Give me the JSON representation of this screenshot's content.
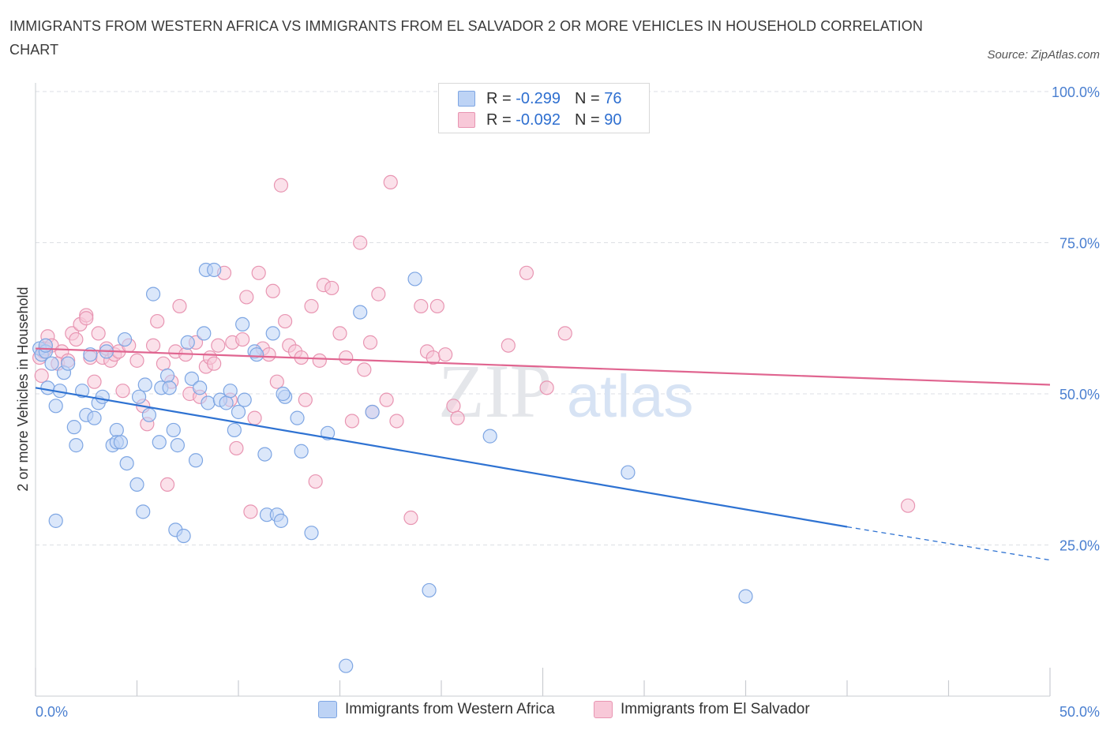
{
  "title": "IMMIGRANTS FROM WESTERN AFRICA VS IMMIGRANTS FROM EL SALVADOR 2 OR MORE VEHICLES IN HOUSEHOLD CORRELATION CHART",
  "source": "Source: ZipAtlas.com",
  "watermark": {
    "zip": "ZIP",
    "atlas": "atlas"
  },
  "colors": {
    "blue_fill": "#bdd3f5",
    "blue_stroke": "#7ea6e3",
    "blue_line": "#2e72d2",
    "pink_fill": "#f8c8d8",
    "pink_stroke": "#e895b2",
    "pink_line": "#e06590",
    "tick_text": "#4a7fd0"
  },
  "legend": {
    "rows": [
      {
        "r_label": "R = ",
        "r_value": "-0.299",
        "n_label": "N = ",
        "n_value": "76",
        "color": "blue"
      },
      {
        "r_label": "R = ",
        "r_value": "-0.092",
        "n_label": "N = ",
        "n_value": "90",
        "color": "pink"
      }
    ]
  },
  "bottom_legend": [
    "Immigrants from Western Africa",
    "Immigrants from El Salvador"
  ],
  "chart_data": {
    "type": "scatter",
    "xlabel": "",
    "ylabel": "2 or more Vehicles in Household",
    "xlim": [
      0,
      50
    ],
    "ylim": [
      0,
      100
    ],
    "x_tick_labels": [
      "0.0%",
      "50.0%"
    ],
    "y_tick_labels": [
      "25.0%",
      "50.0%",
      "75.0%",
      "100.0%"
    ],
    "y_ticks": [
      25,
      50,
      75,
      100
    ],
    "grid": true,
    "series": [
      {
        "name": "Immigrants from Western Africa",
        "color": "blue",
        "points": [
          [
            0.2,
            57.5
          ],
          [
            0.3,
            56.5
          ],
          [
            0.5,
            57.0
          ],
          [
            0.6,
            51.0
          ],
          [
            0.8,
            55.0
          ],
          [
            1.0,
            48.0
          ],
          [
            1.0,
            29.0
          ],
          [
            1.2,
            50.5
          ],
          [
            1.4,
            53.5
          ],
          [
            1.6,
            55.0
          ],
          [
            1.9,
            44.5
          ],
          [
            2.0,
            41.5
          ],
          [
            2.3,
            50.5
          ],
          [
            2.5,
            46.5
          ],
          [
            2.7,
            56.5
          ],
          [
            2.9,
            46.0
          ],
          [
            3.1,
            48.5
          ],
          [
            3.3,
            49.5
          ],
          [
            3.5,
            57.0
          ],
          [
            3.8,
            41.5
          ],
          [
            4.0,
            44.0
          ],
          [
            4.0,
            42.0
          ],
          [
            4.2,
            42.0
          ],
          [
            4.4,
            59.0
          ],
          [
            4.5,
            38.5
          ],
          [
            5.0,
            35.0
          ],
          [
            5.1,
            49.5
          ],
          [
            5.3,
            30.5
          ],
          [
            5.4,
            51.5
          ],
          [
            5.6,
            46.5
          ],
          [
            5.8,
            66.5
          ],
          [
            6.1,
            42.0
          ],
          [
            6.2,
            51.0
          ],
          [
            6.5,
            53.0
          ],
          [
            6.6,
            51.0
          ],
          [
            6.8,
            44.0
          ],
          [
            6.9,
            27.5
          ],
          [
            7.0,
            41.5
          ],
          [
            7.3,
            26.5
          ],
          [
            7.5,
            58.5
          ],
          [
            7.7,
            52.5
          ],
          [
            7.9,
            39.0
          ],
          [
            8.1,
            51.0
          ],
          [
            8.3,
            60.0
          ],
          [
            8.4,
            70.5
          ],
          [
            8.5,
            48.5
          ],
          [
            8.8,
            70.5
          ],
          [
            9.1,
            49.0
          ],
          [
            9.4,
            48.5
          ],
          [
            9.6,
            50.5
          ],
          [
            9.8,
            44.0
          ],
          [
            10.0,
            47.0
          ],
          [
            10.2,
            61.5
          ],
          [
            10.8,
            57.0
          ],
          [
            10.9,
            56.5
          ],
          [
            11.3,
            40.0
          ],
          [
            11.4,
            30.0
          ],
          [
            11.7,
            60.0
          ],
          [
            11.9,
            30.0
          ],
          [
            12.1,
            29.0
          ],
          [
            12.3,
            49.5
          ],
          [
            12.9,
            46.0
          ],
          [
            13.1,
            40.5
          ],
          [
            13.6,
            27.0
          ],
          [
            14.4,
            43.5
          ],
          [
            16.0,
            63.5
          ],
          [
            16.6,
            47.0
          ],
          [
            18.7,
            69.0
          ],
          [
            19.4,
            17.5
          ],
          [
            22.4,
            43.0
          ],
          [
            29.2,
            37.0
          ],
          [
            35.0,
            16.5
          ],
          [
            15.3,
            5.0
          ],
          [
            0.5,
            58.0
          ],
          [
            10.3,
            49.0
          ],
          [
            12.2,
            50.0
          ]
        ]
      },
      {
        "name": "Immigrants from El Salvador",
        "color": "pink",
        "points": [
          [
            0.2,
            56.0
          ],
          [
            0.3,
            53.0
          ],
          [
            0.5,
            57.5
          ],
          [
            0.6,
            59.5
          ],
          [
            0.8,
            58.0
          ],
          [
            1.1,
            55.0
          ],
          [
            1.3,
            57.0
          ],
          [
            1.6,
            55.5
          ],
          [
            1.8,
            60.0
          ],
          [
            2.0,
            59.0
          ],
          [
            2.2,
            61.5
          ],
          [
            2.5,
            63.0
          ],
          [
            2.7,
            56.0
          ],
          [
            2.9,
            52.0
          ],
          [
            3.1,
            60.0
          ],
          [
            3.3,
            56.0
          ],
          [
            3.5,
            57.5
          ],
          [
            3.7,
            55.5
          ],
          [
            3.9,
            56.5
          ],
          [
            4.1,
            57.0
          ],
          [
            4.3,
            50.5
          ],
          [
            4.6,
            58.0
          ],
          [
            5.0,
            55.5
          ],
          [
            5.3,
            48.0
          ],
          [
            5.5,
            45.0
          ],
          [
            5.8,
            58.0
          ],
          [
            6.0,
            62.0
          ],
          [
            6.3,
            55.0
          ],
          [
            6.5,
            35.0
          ],
          [
            6.7,
            52.0
          ],
          [
            6.9,
            57.0
          ],
          [
            7.1,
            64.5
          ],
          [
            7.4,
            56.5
          ],
          [
            7.6,
            50.0
          ],
          [
            7.9,
            58.5
          ],
          [
            8.1,
            49.5
          ],
          [
            8.4,
            54.5
          ],
          [
            8.6,
            56.0
          ],
          [
            8.8,
            55.0
          ],
          [
            9.0,
            58.0
          ],
          [
            9.3,
            70.0
          ],
          [
            9.6,
            49.0
          ],
          [
            9.7,
            58.5
          ],
          [
            9.9,
            41.0
          ],
          [
            10.2,
            59.0
          ],
          [
            10.4,
            66.0
          ],
          [
            10.6,
            30.5
          ],
          [
            10.8,
            46.0
          ],
          [
            11.0,
            70.0
          ],
          [
            11.2,
            57.5
          ],
          [
            11.5,
            56.5
          ],
          [
            11.7,
            67.0
          ],
          [
            11.9,
            52.0
          ],
          [
            12.1,
            84.5
          ],
          [
            12.3,
            62.0
          ],
          [
            12.5,
            58.0
          ],
          [
            12.8,
            57.0
          ],
          [
            13.1,
            56.0
          ],
          [
            13.3,
            49.0
          ],
          [
            13.6,
            64.5
          ],
          [
            13.8,
            35.5
          ],
          [
            14.0,
            55.5
          ],
          [
            14.2,
            68.0
          ],
          [
            14.6,
            67.5
          ],
          [
            15.0,
            60.0
          ],
          [
            15.3,
            56.0
          ],
          [
            15.6,
            45.5
          ],
          [
            16.0,
            75.0
          ],
          [
            16.2,
            54.0
          ],
          [
            16.5,
            58.5
          ],
          [
            16.6,
            47.0
          ],
          [
            16.9,
            66.5
          ],
          [
            17.3,
            49.0
          ],
          [
            17.5,
            85.0
          ],
          [
            17.8,
            45.5
          ],
          [
            18.5,
            29.5
          ],
          [
            19.0,
            64.5
          ],
          [
            19.3,
            57.0
          ],
          [
            19.6,
            56.0
          ],
          [
            19.8,
            64.5
          ],
          [
            20.2,
            56.5
          ],
          [
            20.6,
            48.0
          ],
          [
            20.8,
            46.0
          ],
          [
            23.3,
            58.0
          ],
          [
            24.2,
            70.0
          ],
          [
            25.2,
            51.0
          ],
          [
            26.1,
            60.0
          ],
          [
            43.0,
            31.5
          ],
          [
            2.5,
            62.5
          ],
          [
            0.4,
            57.0
          ]
        ]
      }
    ],
    "trend_lines": [
      {
        "series": "Immigrants from Western Africa",
        "x0": 0,
        "y0": 51.0,
        "x1": 40,
        "y1": 28.0,
        "dash_to_x": 50,
        "dash_to_y": 22.5
      },
      {
        "series": "Immigrants from El Salvador",
        "x0": 0,
        "y0": 57.5,
        "x1": 50,
        "y1": 51.5
      }
    ]
  }
}
